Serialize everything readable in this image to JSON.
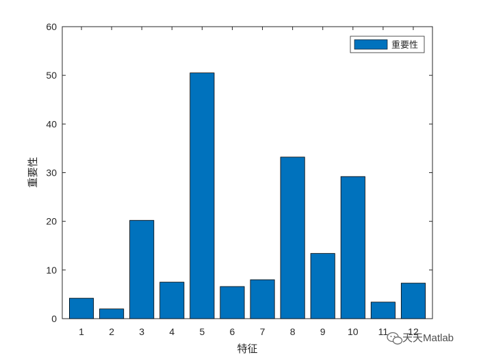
{
  "chart_data": {
    "type": "bar",
    "categories": [
      "1",
      "2",
      "3",
      "4",
      "5",
      "6",
      "7",
      "8",
      "9",
      "10",
      "11",
      "12"
    ],
    "series": [
      {
        "name": "重要性",
        "values": [
          4.2,
          2.0,
          20.2,
          7.5,
          50.5,
          6.6,
          8.0,
          33.2,
          13.4,
          29.2,
          3.4,
          7.3
        ]
      }
    ],
    "xlabel": "特征",
    "ylabel": "重要性",
    "ylim": [
      0,
      60
    ],
    "yticks": [
      0,
      10,
      20,
      30,
      40,
      50,
      60
    ],
    "bar_color": "#0072BD",
    "legend": {
      "position": "top-right",
      "entries": [
        "重要性"
      ]
    },
    "grid": false
  },
  "watermark": {
    "text": "天天Matlab"
  }
}
